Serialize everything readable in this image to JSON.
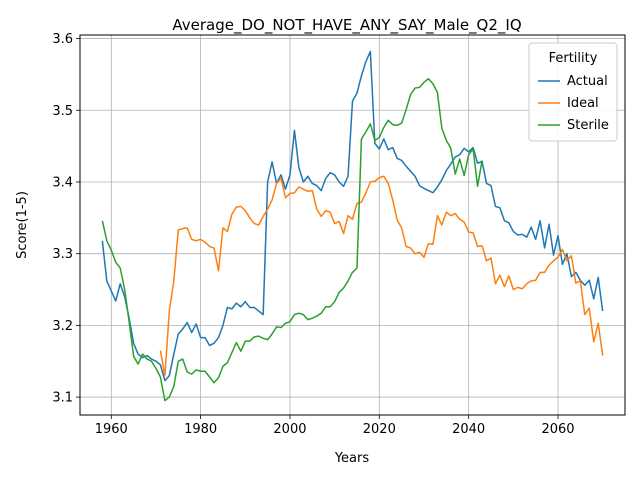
{
  "chart_data": {
    "type": "line",
    "title": "Average_DO_NOT_HAVE_ANY_SAY_Male_Q2_IQ",
    "xlabel": "Years",
    "ylabel": "Score(1-5)",
    "xlim": [
      1953,
      2075
    ],
    "ylim": [
      3.075,
      3.605
    ],
    "xticks": [
      1960,
      1980,
      2000,
      2020,
      2040,
      2060
    ],
    "yticks": [
      3.1,
      3.2,
      3.3,
      3.4,
      3.5,
      3.6
    ],
    "grid": true,
    "legend": {
      "title": "Fertility",
      "position": "top-right"
    },
    "series": [
      {
        "name": "Actual",
        "color": "#1f77b4",
        "points": [
          [
            1958,
            3.318
          ],
          [
            1959,
            3.262
          ],
          [
            1960,
            3.248
          ],
          [
            1961,
            3.234
          ],
          [
            1962,
            3.258
          ],
          [
            1963,
            3.24
          ],
          [
            1964,
            3.21
          ],
          [
            1965,
            3.175
          ],
          [
            1966,
            3.16
          ],
          [
            1967,
            3.155
          ],
          [
            1968,
            3.158
          ],
          [
            1969,
            3.153
          ],
          [
            1970,
            3.15
          ],
          [
            1971,
            3.145
          ],
          [
            1972,
            3.123
          ],
          [
            1973,
            3.13
          ],
          [
            1974,
            3.16
          ],
          [
            1975,
            3.188
          ],
          [
            1976,
            3.195
          ],
          [
            1977,
            3.204
          ],
          [
            1978,
            3.19
          ],
          [
            1979,
            3.202
          ],
          [
            1980,
            3.183
          ],
          [
            1981,
            3.183
          ],
          [
            1982,
            3.172
          ],
          [
            1983,
            3.175
          ],
          [
            1984,
            3.183
          ],
          [
            1985,
            3.2
          ],
          [
            1986,
            3.225
          ],
          [
            1987,
            3.223
          ],
          [
            1988,
            3.231
          ],
          [
            1989,
            3.226
          ],
          [
            1990,
            3.233
          ],
          [
            1991,
            3.225
          ],
          [
            1992,
            3.225
          ],
          [
            1993,
            3.22
          ],
          [
            1994,
            3.215
          ],
          [
            1995,
            3.4
          ],
          [
            1996,
            3.428
          ],
          [
            1997,
            3.398
          ],
          [
            1998,
            3.41
          ],
          [
            1999,
            3.39
          ],
          [
            2000,
            3.41
          ],
          [
            2001,
            3.472
          ],
          [
            2002,
            3.42
          ],
          [
            2003,
            3.4
          ],
          [
            2004,
            3.408
          ],
          [
            2005,
            3.398
          ],
          [
            2006,
            3.395
          ],
          [
            2007,
            3.388
          ],
          [
            2008,
            3.405
          ],
          [
            2009,
            3.413
          ],
          [
            2010,
            3.41
          ],
          [
            2011,
            3.4
          ],
          [
            2012,
            3.394
          ],
          [
            2013,
            3.408
          ],
          [
            2014,
            3.513
          ],
          [
            2015,
            3.524
          ],
          [
            2016,
            3.548
          ],
          [
            2017,
            3.568
          ],
          [
            2018,
            3.582
          ],
          [
            2019,
            3.454
          ],
          [
            2020,
            3.446
          ],
          [
            2021,
            3.46
          ],
          [
            2022,
            3.445
          ],
          [
            2023,
            3.448
          ],
          [
            2024,
            3.433
          ],
          [
            2025,
            3.43
          ],
          [
            2026,
            3.422
          ],
          [
            2027,
            3.415
          ],
          [
            2028,
            3.408
          ],
          [
            2029,
            3.395
          ],
          [
            2030,
            3.391
          ],
          [
            2031,
            3.388
          ],
          [
            2032,
            3.385
          ],
          [
            2033,
            3.393
          ],
          [
            2034,
            3.403
          ],
          [
            2035,
            3.416
          ],
          [
            2036,
            3.425
          ],
          [
            2037,
            3.435
          ],
          [
            2038,
            3.438
          ],
          [
            2039,
            3.447
          ],
          [
            2040,
            3.442
          ],
          [
            2041,
            3.448
          ],
          [
            2042,
            3.426
          ],
          [
            2043,
            3.429
          ],
          [
            2044,
            3.398
          ],
          [
            2045,
            3.395
          ],
          [
            2046,
            3.366
          ],
          [
            2047,
            3.364
          ],
          [
            2048,
            3.346
          ],
          [
            2049,
            3.343
          ],
          [
            2050,
            3.331
          ],
          [
            2051,
            3.326
          ],
          [
            2052,
            3.327
          ],
          [
            2053,
            3.323
          ],
          [
            2054,
            3.337
          ],
          [
            2055,
            3.32
          ],
          [
            2056,
            3.346
          ],
          [
            2057,
            3.308
          ],
          [
            2058,
            3.341
          ],
          [
            2059,
            3.298
          ],
          [
            2060,
            3.325
          ],
          [
            2061,
            3.285
          ],
          [
            2062,
            3.3
          ],
          [
            2063,
            3.268
          ],
          [
            2064,
            3.274
          ],
          [
            2065,
            3.263
          ],
          [
            2066,
            3.256
          ],
          [
            2067,
            3.263
          ],
          [
            2068,
            3.237
          ],
          [
            2069,
            3.267
          ],
          [
            2070,
            3.22
          ]
        ]
      },
      {
        "name": "Ideal",
        "color": "#ff7f0e",
        "points": [
          [
            1971,
            3.165
          ],
          [
            1972,
            3.13
          ],
          [
            1973,
            3.22
          ],
          [
            1974,
            3.262
          ],
          [
            1975,
            3.333
          ],
          [
            1976,
            3.335
          ],
          [
            1977,
            3.336
          ],
          [
            1978,
            3.32
          ],
          [
            1979,
            3.318
          ],
          [
            1980,
            3.32
          ],
          [
            1981,
            3.316
          ],
          [
            1982,
            3.31
          ],
          [
            1983,
            3.308
          ],
          [
            1984,
            3.276
          ],
          [
            1985,
            3.336
          ],
          [
            1986,
            3.331
          ],
          [
            1987,
            3.355
          ],
          [
            1988,
            3.365
          ],
          [
            1989,
            3.366
          ],
          [
            1990,
            3.36
          ],
          [
            1991,
            3.35
          ],
          [
            1992,
            3.342
          ],
          [
            1993,
            3.34
          ],
          [
            1994,
            3.352
          ],
          [
            1995,
            3.362
          ],
          [
            1996,
            3.375
          ],
          [
            1997,
            3.398
          ],
          [
            1998,
            3.405
          ],
          [
            1999,
            3.378
          ],
          [
            2000,
            3.384
          ],
          [
            2001,
            3.385
          ],
          [
            2002,
            3.393
          ],
          [
            2003,
            3.39
          ],
          [
            2004,
            3.387
          ],
          [
            2005,
            3.388
          ],
          [
            2006,
            3.362
          ],
          [
            2007,
            3.352
          ],
          [
            2008,
            3.36
          ],
          [
            2009,
            3.358
          ],
          [
            2010,
            3.342
          ],
          [
            2011,
            3.345
          ],
          [
            2012,
            3.328
          ],
          [
            2013,
            3.353
          ],
          [
            2014,
            3.348
          ],
          [
            2015,
            3.37
          ],
          [
            2016,
            3.372
          ],
          [
            2017,
            3.385
          ],
          [
            2018,
            3.4
          ],
          [
            2019,
            3.401
          ],
          [
            2020,
            3.406
          ],
          [
            2021,
            3.408
          ],
          [
            2022,
            3.398
          ],
          [
            2023,
            3.375
          ],
          [
            2024,
            3.347
          ],
          [
            2025,
            3.336
          ],
          [
            2026,
            3.31
          ],
          [
            2027,
            3.308
          ],
          [
            2028,
            3.3
          ],
          [
            2029,
            3.302
          ],
          [
            2030,
            3.295
          ],
          [
            2031,
            3.314
          ],
          [
            2032,
            3.313
          ],
          [
            2033,
            3.353
          ],
          [
            2034,
            3.34
          ],
          [
            2035,
            3.358
          ],
          [
            2036,
            3.353
          ],
          [
            2037,
            3.356
          ],
          [
            2038,
            3.348
          ],
          [
            2039,
            3.344
          ],
          [
            2040,
            3.33
          ],
          [
            2041,
            3.329
          ],
          [
            2042,
            3.31
          ],
          [
            2043,
            3.311
          ],
          [
            2044,
            3.29
          ],
          [
            2045,
            3.294
          ],
          [
            2046,
            3.258
          ],
          [
            2047,
            3.27
          ],
          [
            2048,
            3.254
          ],
          [
            2049,
            3.269
          ],
          [
            2050,
            3.25
          ],
          [
            2051,
            3.253
          ],
          [
            2052,
            3.251
          ],
          [
            2053,
            3.258
          ],
          [
            2054,
            3.262
          ],
          [
            2055,
            3.263
          ],
          [
            2056,
            3.274
          ],
          [
            2057,
            3.274
          ],
          [
            2058,
            3.284
          ],
          [
            2059,
            3.29
          ],
          [
            2060,
            3.295
          ],
          [
            2061,
            3.306
          ],
          [
            2062,
            3.29
          ],
          [
            2063,
            3.297
          ],
          [
            2064,
            3.259
          ],
          [
            2065,
            3.262
          ],
          [
            2066,
            3.215
          ],
          [
            2067,
            3.224
          ],
          [
            2068,
            3.177
          ],
          [
            2069,
            3.203
          ],
          [
            2070,
            3.158
          ]
        ]
      },
      {
        "name": "Sterile",
        "color": "#2ca02c",
        "points": [
          [
            1958,
            3.346
          ],
          [
            1959,
            3.318
          ],
          [
            1960,
            3.305
          ],
          [
            1961,
            3.288
          ],
          [
            1962,
            3.28
          ],
          [
            1963,
            3.25
          ],
          [
            1964,
            3.205
          ],
          [
            1965,
            3.157
          ],
          [
            1966,
            3.146
          ],
          [
            1967,
            3.16
          ],
          [
            1968,
            3.153
          ],
          [
            1969,
            3.15
          ],
          [
            1970,
            3.14
          ],
          [
            1971,
            3.128
          ],
          [
            1972,
            3.095
          ],
          [
            1973,
            3.1
          ],
          [
            1974,
            3.115
          ],
          [
            1975,
            3.15
          ],
          [
            1976,
            3.153
          ],
          [
            1977,
            3.135
          ],
          [
            1978,
            3.132
          ],
          [
            1979,
            3.138
          ],
          [
            1980,
            3.136
          ],
          [
            1981,
            3.136
          ],
          [
            1982,
            3.128
          ],
          [
            1983,
            3.12
          ],
          [
            1984,
            3.127
          ],
          [
            1985,
            3.143
          ],
          [
            1986,
            3.148
          ],
          [
            1987,
            3.162
          ],
          [
            1988,
            3.176
          ],
          [
            1989,
            3.164
          ],
          [
            1990,
            3.178
          ],
          [
            1991,
            3.178
          ],
          [
            1992,
            3.184
          ],
          [
            1993,
            3.185
          ],
          [
            1994,
            3.182
          ],
          [
            1995,
            3.18
          ],
          [
            1996,
            3.188
          ],
          [
            1997,
            3.198
          ],
          [
            1998,
            3.197
          ],
          [
            1999,
            3.203
          ],
          [
            2000,
            3.205
          ],
          [
            2001,
            3.215
          ],
          [
            2002,
            3.217
          ],
          [
            2003,
            3.215
          ],
          [
            2004,
            3.208
          ],
          [
            2005,
            3.21
          ],
          [
            2006,
            3.213
          ],
          [
            2007,
            3.217
          ],
          [
            2008,
            3.226
          ],
          [
            2009,
            3.226
          ],
          [
            2010,
            3.233
          ],
          [
            2011,
            3.246
          ],
          [
            2012,
            3.252
          ],
          [
            2013,
            3.262
          ],
          [
            2014,
            3.274
          ],
          [
            2015,
            3.28
          ],
          [
            2016,
            3.46
          ],
          [
            2017,
            3.47
          ],
          [
            2018,
            3.481
          ],
          [
            2019,
            3.458
          ],
          [
            2020,
            3.462
          ],
          [
            2021,
            3.476
          ],
          [
            2022,
            3.486
          ],
          [
            2023,
            3.48
          ],
          [
            2024,
            3.479
          ],
          [
            2025,
            3.482
          ],
          [
            2026,
            3.501
          ],
          [
            2027,
            3.522
          ],
          [
            2028,
            3.531
          ],
          [
            2029,
            3.532
          ],
          [
            2030,
            3.539
          ],
          [
            2031,
            3.544
          ],
          [
            2032,
            3.537
          ],
          [
            2033,
            3.525
          ],
          [
            2034,
            3.475
          ],
          [
            2035,
            3.458
          ],
          [
            2036,
            3.447
          ],
          [
            2037,
            3.411
          ],
          [
            2038,
            3.432
          ],
          [
            2039,
            3.409
          ],
          [
            2040,
            3.438
          ],
          [
            2041,
            3.446
          ],
          [
            2042,
            3.394
          ],
          [
            2043,
            3.43
          ]
        ]
      }
    ]
  }
}
